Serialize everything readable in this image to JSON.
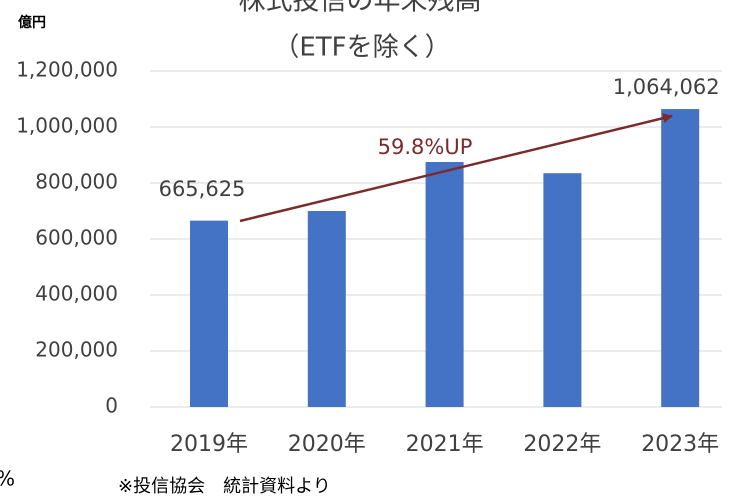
{
  "chart_data": {
    "type": "bar",
    "title": "株式投信の年末残高",
    "subtitle": "（ETFを除く）",
    "y_axis_label": "億円",
    "annotation": "59.8%UP",
    "footnote": "※投信協会　統計資料より",
    "left_fragment": "%",
    "categories": [
      "2019年",
      "2020年",
      "2021年",
      "2022年",
      "2023年"
    ],
    "values": [
      665625,
      700000,
      875000,
      835000,
      1064062
    ],
    "value_labels": [
      "665,625",
      null,
      null,
      null,
      "1,064,062"
    ],
    "color": "#4472c4",
    "ylim": [
      0,
      1200000
    ],
    "yticks": [
      0,
      {
        "value": 200000,
        "label": "200,000"
      },
      {
        "value": 400000,
        "label": "400,000"
      },
      {
        "value": 600000,
        "label": "600,000"
      },
      {
        "value": 800000,
        "label": "800,000"
      },
      {
        "value": 1000000,
        "label": "1,000,000"
      },
      {
        "value": 1200000,
        "label": "1,200,000"
      }
    ],
    "grid": true
  }
}
